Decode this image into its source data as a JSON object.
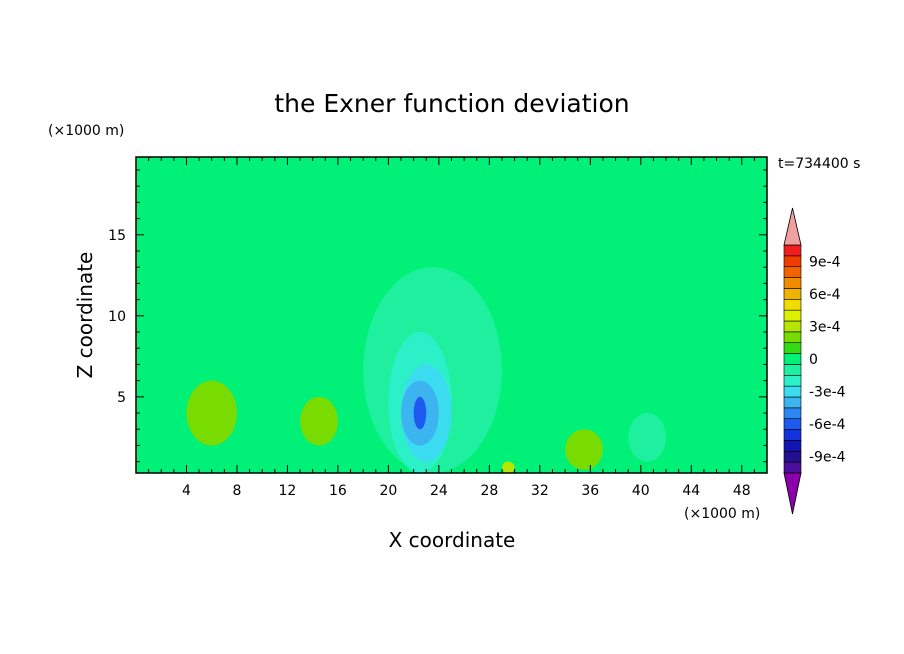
{
  "chart_data": {
    "type": "heatmap",
    "title": "the Exner function deviation",
    "xlabel": "X coordinate",
    "ylabel": "Z coordinate",
    "x_unit": "(×1000 m)",
    "y_unit": "(×1000 m)",
    "time_label": "t=734400 s",
    "xlim": [
      0,
      50
    ],
    "ylim": [
      0.3,
      19.8
    ],
    "x_ticks": [
      4,
      8,
      12,
      16,
      20,
      24,
      28,
      32,
      36,
      40,
      44,
      48
    ],
    "x_tick_labels": [
      "4",
      "8",
      "12",
      "16",
      "20",
      "24",
      "28",
      "32",
      "36",
      "40",
      "44",
      "48"
    ],
    "y_ticks": [
      5,
      10,
      15
    ],
    "y_tick_labels": [
      "5",
      "10",
      "15"
    ],
    "colorbar": {
      "levels": [
        -0.0011,
        -0.001,
        -0.0009,
        -0.0008,
        -0.0007,
        -0.0006,
        -0.0005,
        -0.0004,
        -0.0003,
        -0.0002,
        -0.0001,
        0,
        0.0001,
        0.0002,
        0.0003,
        0.0004,
        0.0005,
        0.0006,
        0.0007,
        0.0008,
        0.0009,
        0.001,
        0.0011
      ],
      "colors": [
        "#8b00a8",
        "#4b0f9c",
        "#24108e",
        "#1414b4",
        "#1432dc",
        "#1e5af0",
        "#2d87f0",
        "#3cb4f0",
        "#3cdcf0",
        "#2cf0c8",
        "#1ef0a0",
        "#00f078",
        "#32dc14",
        "#78dc00",
        "#b4e600",
        "#dcf000",
        "#f0dc00",
        "#f0b400",
        "#f08c00",
        "#f06400",
        "#f03c00",
        "#f01e1e",
        "#f0a0a0"
      ],
      "tick_values": [
        0.0009,
        0.0006,
        0.0003,
        0,
        -0.0003,
        -0.0006,
        -0.0009
      ],
      "tick_labels": [
        "9e-4",
        "6e-4",
        "3e-4",
        "0",
        "-3e-4",
        "-6e-4",
        "-9e-4"
      ]
    },
    "background_level": 0,
    "regions": [
      {
        "value": 5e-05,
        "x": [
          5,
          17
        ],
        "z": [
          2,
          17
        ]
      },
      {
        "value": 5e-05,
        "x": [
          29,
          37
        ],
        "z": [
          5,
          16
        ]
      },
      {
        "value": 0.0002,
        "x": [
          4,
          8
        ],
        "z": [
          2,
          6
        ]
      },
      {
        "value": 0.0002,
        "x": [
          13,
          16
        ],
        "z": [
          2,
          5
        ]
      },
      {
        "value": 0.0002,
        "x": [
          34,
          37
        ],
        "z": [
          0.5,
          3
        ]
      },
      {
        "value": 0.0003,
        "x": [
          29,
          30
        ],
        "z": [
          0.3,
          1
        ]
      },
      {
        "value": -0.0001,
        "x": [
          18,
          29
        ],
        "z": [
          0.3,
          13
        ]
      },
      {
        "value": -0.0002,
        "x": [
          20,
          25
        ],
        "z": [
          0.3,
          9
        ]
      },
      {
        "value": -0.0003,
        "x": [
          21,
          25
        ],
        "z": [
          1,
          7
        ]
      },
      {
        "value": -0.0004,
        "x": [
          21,
          24
        ],
        "z": [
          2,
          6
        ]
      },
      {
        "value": -0.0006,
        "x": [
          22,
          23
        ],
        "z": [
          3,
          5
        ]
      },
      {
        "value": -0.0001,
        "x": [
          39,
          42
        ],
        "z": [
          1,
          4
        ]
      }
    ]
  }
}
